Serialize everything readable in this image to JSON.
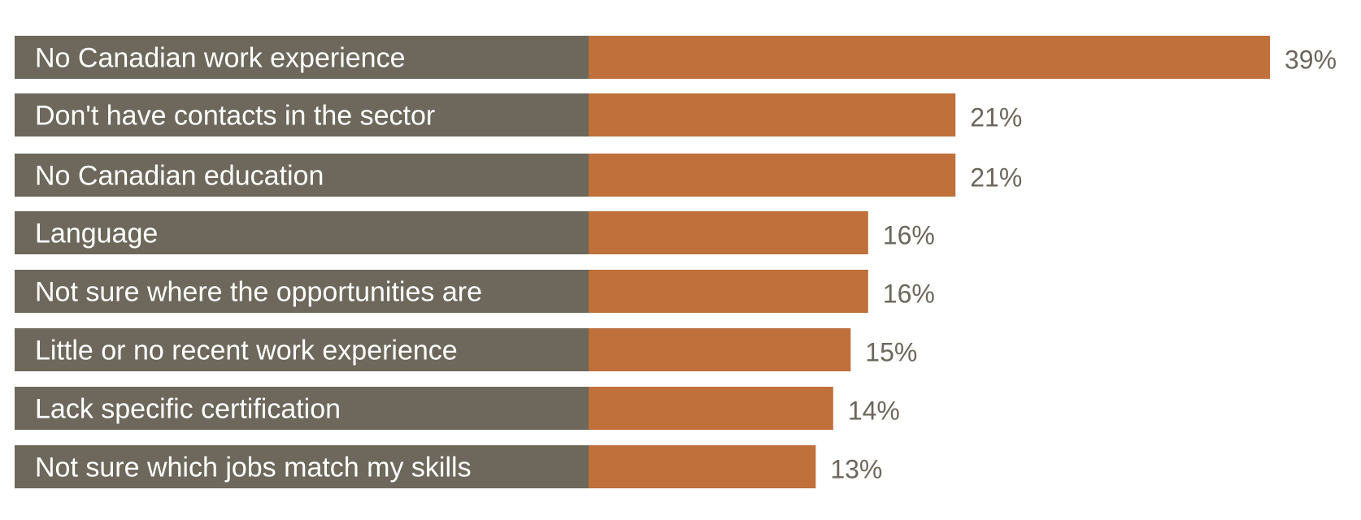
{
  "chart_data": {
    "type": "bar",
    "orientation": "horizontal",
    "categories": [
      "No Canadian work experience",
      "Don't have contacts in the sector",
      "No Canadian education",
      "Language",
      "Not sure where the opportunities are",
      "Little or no recent work experience",
      "Lack specific certification",
      "Not sure which jobs match my skills"
    ],
    "values": [
      39,
      21,
      21,
      16,
      16,
      15,
      14,
      13
    ],
    "value_labels": [
      "39%",
      "21%",
      "21%",
      "16%",
      "16%",
      "15%",
      "14%",
      "13%"
    ],
    "unit": "%",
    "title": "",
    "xlabel": "",
    "ylabel": "",
    "xlim": [
      0,
      39
    ],
    "grid": false,
    "legend": "none",
    "colors": {
      "label_band": "#6d685b",
      "bar": "#c0703b",
      "value_text": "#6d675b",
      "label_text": "#ffffff"
    }
  }
}
